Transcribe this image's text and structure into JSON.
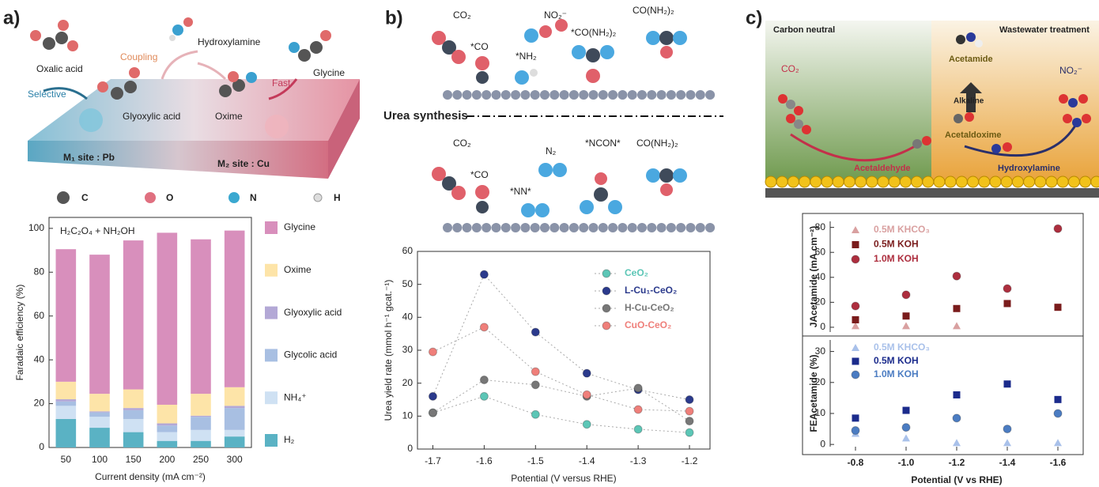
{
  "schematics": {
    "a": {
      "label": "a)",
      "texts": [
        "Oxalic acid",
        "Hydroxylamine",
        "Coupling",
        "Glyoxylic acid",
        "Selective",
        "Oxime",
        "Fast",
        "Glycine",
        "M₁ site : Pb",
        "M₂ site : Cu"
      ],
      "atoms": [
        "C",
        "O",
        "N",
        "H"
      ]
    },
    "b": {
      "label": "b)",
      "texts": [
        "CO₂",
        "NO₂⁻",
        "CO(NH₂)₂",
        "*CO",
        "*NH₂",
        "*CO(NH₂)₂",
        "Urea synthesis",
        "CO₂",
        "N₂",
        "*NCON*",
        "CO(NH₂)₂",
        "*CO",
        "*NN*"
      ]
    },
    "c": {
      "label": "c)",
      "texts": [
        "Carbon neutral",
        "Wastewater treatment",
        "Acetamide",
        "CO₂",
        "NO₂⁻",
        "Alkaline",
        "Acetaldoxime",
        "Acetaldehyde",
        "Hydroxylamine"
      ]
    }
  },
  "chart_data": [
    {
      "type": "bar",
      "stacked": true,
      "annotation": "H₂C₂O₄ + NH₂OH",
      "xlabel": "Current density (mA cm⁻²)",
      "ylabel": "Faradaic efficiency (%)",
      "categories": [
        "50",
        "100",
        "150",
        "200",
        "250",
        "300"
      ],
      "ylim": [
        0,
        105
      ],
      "yticks": [
        0,
        20,
        40,
        60,
        80,
        100
      ],
      "legend": "right",
      "series": [
        {
          "name": "H₂",
          "color": "#5ab2c4",
          "values": [
            13,
            9,
            7,
            3,
            3,
            5
          ]
        },
        {
          "name": "NH₄⁺",
          "color": "#cfe1f3",
          "values": [
            6,
            5,
            6,
            4,
            5,
            3
          ]
        },
        {
          "name": "Glycolic acid",
          "color": "#a8bfe2",
          "values": [
            2,
            2,
            4,
            3,
            6,
            10
          ]
        },
        {
          "name": "Glyoxylic acid",
          "color": "#b3a8d6",
          "values": [
            1,
            0.5,
            1,
            1,
            0.5,
            1
          ]
        },
        {
          "name": "Oxime",
          "color": "#fde4a8",
          "values": [
            8,
            8,
            8.5,
            8.5,
            10,
            8.5
          ]
        },
        {
          "name": "Glycine",
          "color": "#d88fbc",
          "values": [
            60.5,
            63.5,
            68,
            78.5,
            70.5,
            71.5
          ]
        }
      ]
    },
    {
      "type": "line",
      "linestyle": "dotted",
      "xlabel": "Potential (V versus RHE)",
      "ylabel": "Urea yield rate (mmol h⁻¹ gcat.⁻¹)",
      "x": [
        -1.7,
        -1.6,
        -1.5,
        -1.4,
        -1.3,
        -1.2
      ],
      "xlim": [
        -1.73,
        -1.16
      ],
      "xticks": [
        -1.7,
        -1.6,
        -1.5,
        -1.4,
        -1.3,
        -1.2
      ],
      "ylim": [
        0,
        60
      ],
      "yticks": [
        0,
        10,
        20,
        30,
        40,
        50,
        60
      ],
      "legend": "upper right",
      "series": [
        {
          "name": "CeO₂",
          "color": "#5cc6b6",
          "marker": "circle",
          "values": [
            11,
            16,
            10.5,
            7.5,
            6,
            5
          ]
        },
        {
          "name": "L-Cu₁-CeO₂",
          "color": "#2b3a8c",
          "marker": "circle",
          "values": [
            16,
            53,
            35.5,
            23,
            18,
            15
          ]
        },
        {
          "name": "H-Cu-CeO₂",
          "color": "#777777",
          "marker": "circle",
          "values": [
            11,
            21,
            19.5,
            16,
            18.5,
            8.5
          ]
        },
        {
          "name": "CuO-CeO₂",
          "color": "#ef7f7a",
          "marker": "circle",
          "values": [
            29.5,
            37,
            23.5,
            16.5,
            12,
            11.5
          ]
        }
      ]
    },
    {
      "type": "scatter",
      "ylabel": "JAcetamide (mA cm⁻²)",
      "x": [
        -0.8,
        -1.0,
        -1.2,
        -1.4,
        -1.6
      ],
      "xlim": [
        -0.7,
        -1.7
      ],
      "ylim": [
        -7,
        88
      ],
      "yticks": [
        0,
        20,
        40,
        60,
        80
      ],
      "legend": "upper left",
      "series": [
        {
          "name": "0.5M KHCO₃",
          "color": "#d9a0a0",
          "marker": "triangle",
          "values": [
            1,
            1,
            1,
            null,
            null
          ]
        },
        {
          "name": "0.5M KOH",
          "color": "#7a1c1c",
          "marker": "square",
          "values": [
            6,
            9,
            15,
            19,
            16
          ]
        },
        {
          "name": "1.0M KOH",
          "color": "#ad2e3e",
          "marker": "circle",
          "values": [
            17,
            26,
            41,
            31,
            79
          ]
        }
      ]
    },
    {
      "type": "scatter",
      "xlabel": "Potential (V vs RHE)",
      "ylabel": "FEAcetamide (%)",
      "x": [
        -0.8,
        -1.0,
        -1.2,
        -1.4,
        -1.6
      ],
      "xlim": [
        -0.7,
        -1.7
      ],
      "xticks": [
        -0.8,
        {
          "value": -1.0,
          "label": "-1.0"
        },
        -1.2,
        -1.4,
        -1.6
      ],
      "ylim": [
        -2,
        35
      ],
      "yticks": [
        0,
        10,
        20,
        30
      ],
      "legend": "upper left",
      "series": [
        {
          "name": "0.5M KHCO₃",
          "color": "#a9c1ea",
          "marker": "triangle",
          "values": [
            3.5,
            2,
            0.5,
            0.5,
            0.5
          ]
        },
        {
          "name": "0.5M KOH",
          "color": "#1b2b8c",
          "marker": "square",
          "values": [
            8.5,
            11,
            16,
            19.5,
            14.5
          ]
        },
        {
          "name": "1.0M KOH",
          "color": "#4b7cc2",
          "marker": "circle",
          "values": [
            4.5,
            5.5,
            8.5,
            5,
            10
          ]
        }
      ]
    }
  ]
}
